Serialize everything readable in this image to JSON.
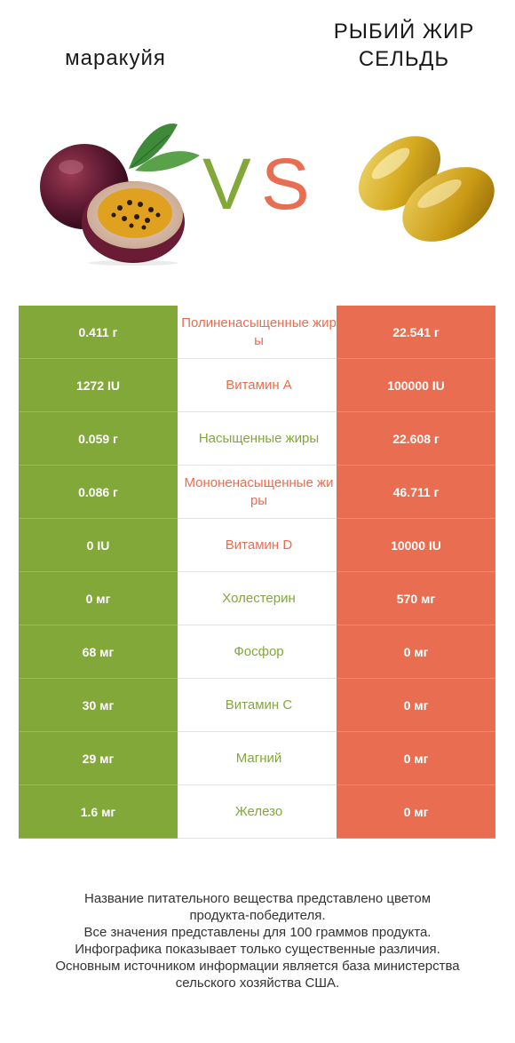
{
  "header": {
    "left_title": "маракуйя",
    "right_title_line1": "РЫБИЙ ЖИР",
    "right_title_line2": "СЕЛЬДЬ",
    "vs_v": "V",
    "vs_s": "S"
  },
  "colors": {
    "left": "#82a83a",
    "right": "#e96d50"
  },
  "rows": [
    {
      "left": "0.411 г",
      "name": "Полиненасыщенные жиры",
      "right": "22.541 г",
      "winner": "right"
    },
    {
      "left": "1272 IU",
      "name": "Витамин A",
      "right": "100000 IU",
      "winner": "right"
    },
    {
      "left": "0.059 г",
      "name": "Насыщенные жиры",
      "right": "22.608 г",
      "winner": "left"
    },
    {
      "left": "0.086 г",
      "name": "Мононенасыщенные жиры",
      "right": "46.711 г",
      "winner": "right"
    },
    {
      "left": "0 IU",
      "name": "Витамин D",
      "right": "10000 IU",
      "winner": "right"
    },
    {
      "left": "0 мг",
      "name": "Холестерин",
      "right": "570 мг",
      "winner": "left"
    },
    {
      "left": "68 мг",
      "name": "Фосфор",
      "right": "0 мг",
      "winner": "left"
    },
    {
      "left": "30 мг",
      "name": "Витамин C",
      "right": "0 мг",
      "winner": "left"
    },
    {
      "left": "29 мг",
      "name": "Магний",
      "right": "0 мг",
      "winner": "left"
    },
    {
      "left": "1.6 мг",
      "name": "Железо",
      "right": "0 мг",
      "winner": "left"
    }
  ],
  "footnote": {
    "line1": "Название питательного вещества представлено цветом",
    "line2": "продукта-победителя.",
    "line3": "Все значения представлены для 100 граммов продукта.",
    "line4": "Инфографика показывает только существенные различия.",
    "line5": "Основным источником информации является база министерства",
    "line6": "сельского хозяйства США."
  }
}
